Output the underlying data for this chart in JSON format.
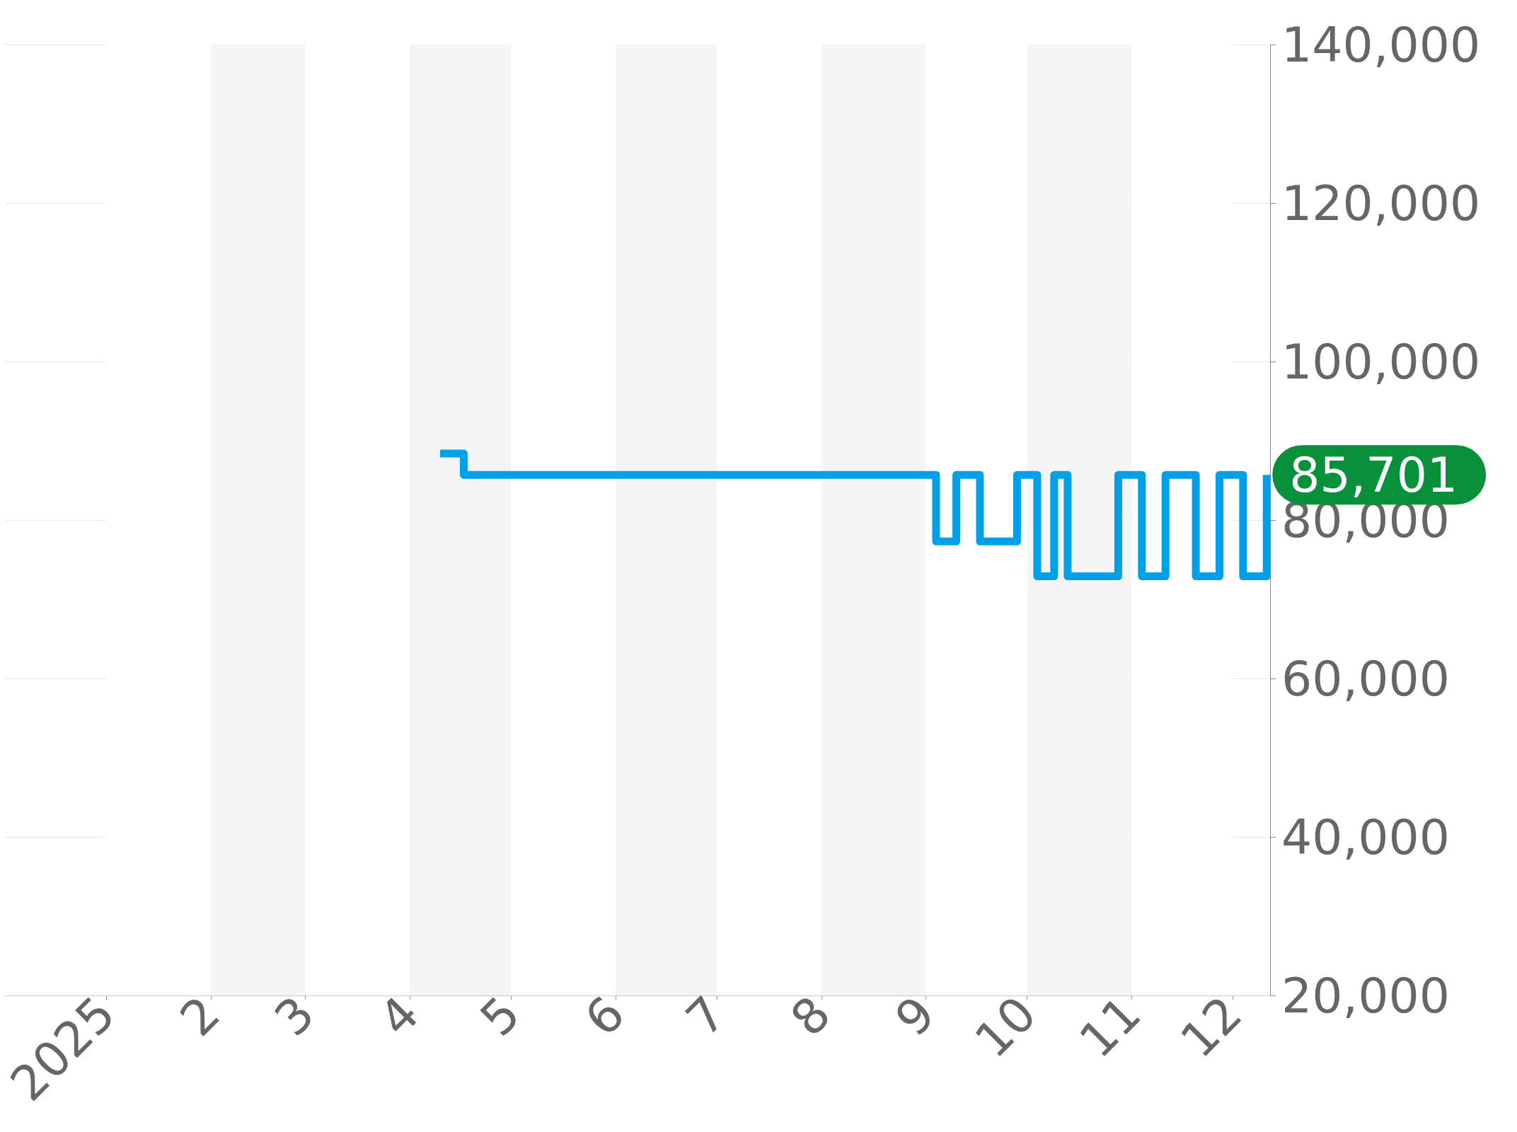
{
  "chart_data": {
    "type": "step",
    "x": [
      "2025-04-10",
      "2025-04-17",
      "2025-09-04",
      "2025-09-10",
      "2025-09-17",
      "2025-09-28",
      "2025-10-04",
      "2025-10-09",
      "2025-10-13",
      "2025-10-28",
      "2025-11-04",
      "2025-11-11",
      "2025-11-20",
      "2025-11-27",
      "2025-12-04",
      "2025-12-11"
    ],
    "series": [
      {
        "color": "#00a0e9",
        "values": [
          88400,
          85701,
          77300,
          85701,
          77300,
          85701,
          72900,
          85701,
          72900,
          85701,
          72900,
          85701,
          72900,
          85701,
          72900,
          85701
        ]
      }
    ],
    "xlim": [
      "2024-12-02",
      "2025-12-12"
    ],
    "xticks": [
      {
        "value": "2025-01-01",
        "label": "2025"
      },
      {
        "value": "2025-02-01",
        "label": "2"
      },
      {
        "value": "2025-03-01",
        "label": "3"
      },
      {
        "value": "2025-04-01",
        "label": "4"
      },
      {
        "value": "2025-05-01",
        "label": "5"
      },
      {
        "value": "2025-06-01",
        "label": "6"
      },
      {
        "value": "2025-07-01",
        "label": "7"
      },
      {
        "value": "2025-08-01",
        "label": "8"
      },
      {
        "value": "2025-09-01",
        "label": "9"
      },
      {
        "value": "2025-10-01",
        "label": "10"
      },
      {
        "value": "2025-11-01",
        "label": "11"
      },
      {
        "value": "2025-12-01",
        "label": "12"
      }
    ],
    "ylim": [
      20000,
      140000
    ],
    "yticks": [
      {
        "value": 20000,
        "label": "20,000"
      },
      {
        "value": 40000,
        "label": "40,000"
      },
      {
        "value": 60000,
        "label": "60,000"
      },
      {
        "value": 80000,
        "label": "80,000"
      },
      {
        "value": 100000,
        "label": "100,000"
      },
      {
        "value": 120000,
        "label": "120,000"
      },
      {
        "value": 140000,
        "label": "140,000"
      }
    ],
    "annotations": [
      {
        "text": "85,701",
        "x": "2025-12-11",
        "y": 85701
      }
    ],
    "grid": true,
    "marker": "none",
    "line_style": "solid"
  }
}
